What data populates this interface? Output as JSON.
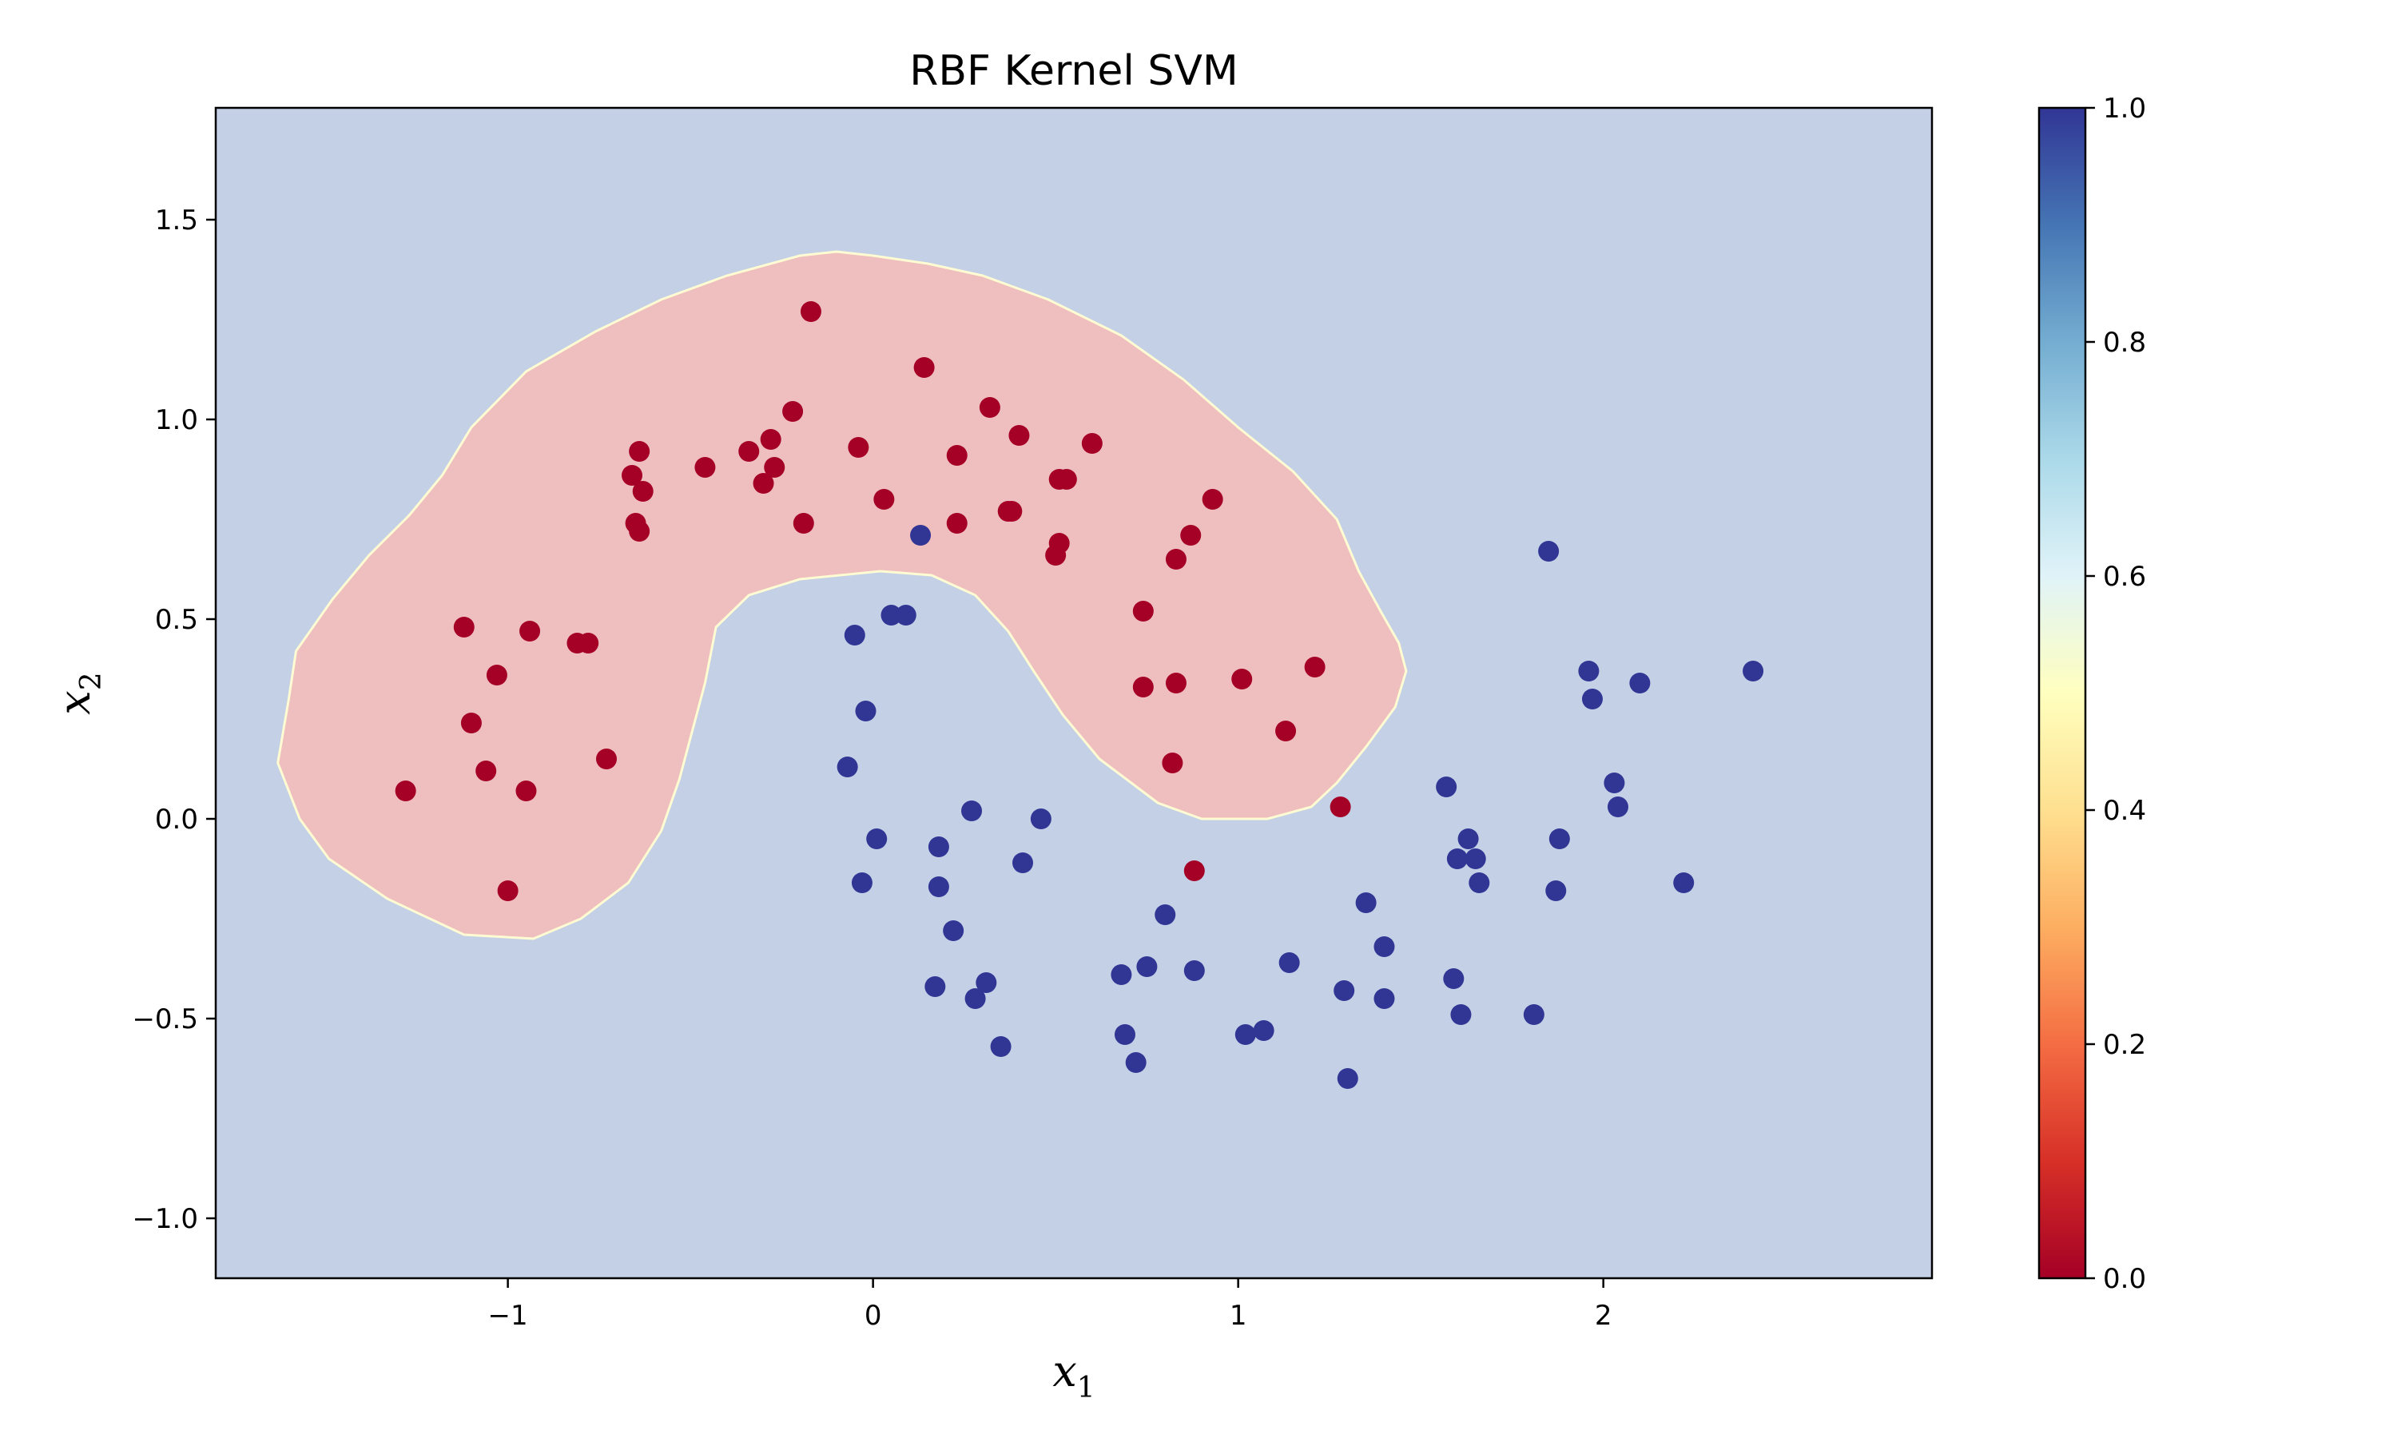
{
  "chart_data": {
    "type": "scatter",
    "title": "RBF Kernel SVM",
    "xlabel_main": "x",
    "xlabel_sub": "1",
    "ylabel_main": "x",
    "ylabel_sub": "2",
    "xlim": [
      -1.8,
      2.9
    ],
    "ylim": [
      -1.15,
      1.78
    ],
    "x_ticks": [
      -1,
      0,
      1,
      2
    ],
    "x_tick_labels": [
      "−1",
      "0",
      "1",
      "2"
    ],
    "y_ticks": [
      -1.0,
      -0.5,
      0.0,
      0.5,
      1.0,
      1.5
    ],
    "y_tick_labels": [
      "−1.0",
      "−0.5",
      "0.0",
      "0.5",
      "1.0",
      "1.5"
    ],
    "colorbar": {
      "min": 0.0,
      "max": 1.0,
      "ticks": [
        0.0,
        0.2,
        0.4,
        0.6,
        0.8,
        1.0
      ],
      "tick_labels": [
        "0.0",
        "0.2",
        "0.4",
        "0.6",
        "0.8",
        "1.0"
      ],
      "colormap": "RdYlBu"
    },
    "colors": {
      "class0_point": "#a50026",
      "class1_point": "#313695",
      "region0": "#efbebe",
      "region1": "#c4d0e6",
      "boundary": "#fffbd2"
    },
    "decision_region_class0": [
      [
        -1.63,
        0.14
      ],
      [
        -1.6,
        0.3
      ],
      [
        -1.58,
        0.42
      ],
      [
        -1.48,
        0.55
      ],
      [
        -1.38,
        0.66
      ],
      [
        -1.27,
        0.76
      ],
      [
        -1.18,
        0.86
      ],
      [
        -1.1,
        0.98
      ],
      [
        -0.95,
        1.12
      ],
      [
        -0.76,
        1.22
      ],
      [
        -0.58,
        1.3
      ],
      [
        -0.4,
        1.36
      ],
      [
        -0.2,
        1.41
      ],
      [
        -0.1,
        1.42
      ],
      [
        0.0,
        1.41
      ],
      [
        0.15,
        1.39
      ],
      [
        0.3,
        1.36
      ],
      [
        0.48,
        1.3
      ],
      [
        0.68,
        1.21
      ],
      [
        0.85,
        1.1
      ],
      [
        1.0,
        0.98
      ],
      [
        1.15,
        0.87
      ],
      [
        1.27,
        0.75
      ],
      [
        1.33,
        0.62
      ],
      [
        1.39,
        0.52
      ],
      [
        1.44,
        0.44
      ],
      [
        1.46,
        0.37
      ],
      [
        1.43,
        0.28
      ],
      [
        1.35,
        0.18
      ],
      [
        1.27,
        0.09
      ],
      [
        1.2,
        0.03
      ],
      [
        1.08,
        0.0
      ],
      [
        0.9,
        0.0
      ],
      [
        0.78,
        0.04
      ],
      [
        0.62,
        0.15
      ],
      [
        0.52,
        0.26
      ],
      [
        0.44,
        0.37
      ],
      [
        0.37,
        0.47
      ],
      [
        0.28,
        0.56
      ],
      [
        0.16,
        0.61
      ],
      [
        0.02,
        0.62
      ],
      [
        -0.2,
        0.6
      ],
      [
        -0.34,
        0.56
      ],
      [
        -0.43,
        0.48
      ],
      [
        -0.46,
        0.34
      ],
      [
        -0.53,
        0.1
      ],
      [
        -0.58,
        -0.03
      ],
      [
        -0.67,
        -0.16
      ],
      [
        -0.8,
        -0.25
      ],
      [
        -0.93,
        -0.3
      ],
      [
        -1.12,
        -0.29
      ],
      [
        -1.33,
        -0.2
      ],
      [
        -1.49,
        -0.1
      ],
      [
        -1.57,
        0.0
      ]
    ],
    "series": [
      {
        "class": 0,
        "points": [
          [
            -0.17,
            1.27
          ],
          [
            0.14,
            1.13
          ],
          [
            0.32,
            1.03
          ],
          [
            -0.22,
            1.02
          ],
          [
            -0.28,
            0.95
          ],
          [
            -0.34,
            0.92
          ],
          [
            -0.64,
            0.92
          ],
          [
            -0.46,
            0.88
          ],
          [
            -0.27,
            0.88
          ],
          [
            -0.04,
            0.93
          ],
          [
            0.23,
            0.91
          ],
          [
            0.4,
            0.96
          ],
          [
            0.6,
            0.94
          ],
          [
            -0.66,
            0.86
          ],
          [
            -0.63,
            0.82
          ],
          [
            -0.3,
            0.84
          ],
          [
            0.03,
            0.8
          ],
          [
            0.51,
            0.85
          ],
          [
            0.53,
            0.85
          ],
          [
            0.93,
            0.8
          ],
          [
            0.37,
            0.77
          ],
          [
            0.38,
            0.77
          ],
          [
            -0.65,
            0.74
          ],
          [
            -0.64,
            0.72
          ],
          [
            -0.19,
            0.74
          ],
          [
            0.23,
            0.74
          ],
          [
            0.87,
            0.71
          ],
          [
            0.51,
            0.69
          ],
          [
            0.5,
            0.66
          ],
          [
            0.83,
            0.65
          ],
          [
            0.74,
            0.52
          ],
          [
            -1.12,
            0.48
          ],
          [
            -0.94,
            0.47
          ],
          [
            -0.81,
            0.44
          ],
          [
            -0.78,
            0.44
          ],
          [
            -1.03,
            0.36
          ],
          [
            1.21,
            0.38
          ],
          [
            1.01,
            0.35
          ],
          [
            0.83,
            0.34
          ],
          [
            0.74,
            0.33
          ],
          [
            -1.1,
            0.24
          ],
          [
            1.13,
            0.22
          ],
          [
            -0.73,
            0.15
          ],
          [
            0.82,
            0.14
          ],
          [
            -1.06,
            0.12
          ],
          [
            -0.95,
            0.07
          ],
          [
            -1.28,
            0.07
          ],
          [
            1.28,
            0.03
          ],
          [
            -1.0,
            -0.18
          ],
          [
            0.88,
            -0.13
          ]
        ]
      },
      {
        "class": 1,
        "points": [
          [
            0.13,
            0.71
          ],
          [
            1.85,
            0.67
          ],
          [
            0.05,
            0.51
          ],
          [
            0.09,
            0.51
          ],
          [
            -0.05,
            0.46
          ],
          [
            1.96,
            0.37
          ],
          [
            2.1,
            0.34
          ],
          [
            2.41,
            0.37
          ],
          [
            1.97,
            0.3
          ],
          [
            -0.02,
            0.27
          ],
          [
            -0.07,
            0.13
          ],
          [
            2.03,
            0.09
          ],
          [
            1.57,
            0.08
          ],
          [
            2.04,
            0.03
          ],
          [
            0.27,
            0.02
          ],
          [
            0.46,
            0.0
          ],
          [
            0.01,
            -0.05
          ],
          [
            1.88,
            -0.05
          ],
          [
            1.63,
            -0.05
          ],
          [
            0.18,
            -0.07
          ],
          [
            1.6,
            -0.1
          ],
          [
            1.65,
            -0.1
          ],
          [
            0.41,
            -0.11
          ],
          [
            -0.03,
            -0.16
          ],
          [
            0.18,
            -0.17
          ],
          [
            1.66,
            -0.16
          ],
          [
            2.22,
            -0.16
          ],
          [
            1.87,
            -0.18
          ],
          [
            1.35,
            -0.21
          ],
          [
            0.8,
            -0.24
          ],
          [
            0.22,
            -0.28
          ],
          [
            1.4,
            -0.32
          ],
          [
            1.14,
            -0.36
          ],
          [
            0.75,
            -0.37
          ],
          [
            0.68,
            -0.39
          ],
          [
            0.88,
            -0.38
          ],
          [
            0.31,
            -0.41
          ],
          [
            0.17,
            -0.42
          ],
          [
            1.59,
            -0.4
          ],
          [
            1.29,
            -0.43
          ],
          [
            0.28,
            -0.45
          ],
          [
            1.4,
            -0.45
          ],
          [
            1.61,
            -0.49
          ],
          [
            1.81,
            -0.49
          ],
          [
            1.02,
            -0.54
          ],
          [
            1.07,
            -0.53
          ],
          [
            0.69,
            -0.54
          ],
          [
            0.35,
            -0.57
          ],
          [
            0.72,
            -0.61
          ],
          [
            1.3,
            -0.65
          ]
        ]
      }
    ]
  }
}
